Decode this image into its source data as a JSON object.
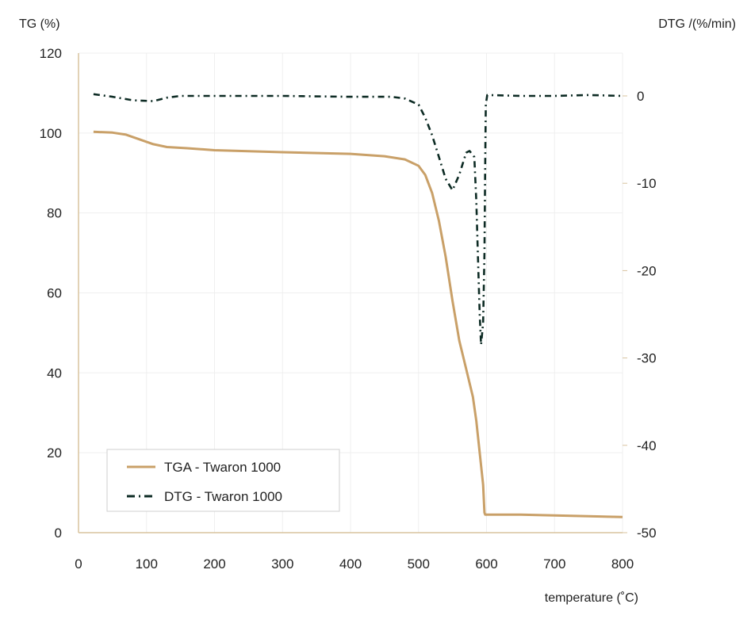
{
  "chart_data": {
    "type": "line",
    "title": "",
    "xlabel": "temperature (˚C)",
    "ylabel": "TG (%)",
    "y2label": "DTG /(%/min)",
    "xlim": [
      0,
      800
    ],
    "ylim": [
      0,
      120
    ],
    "y2lim": [
      -50,
      0
    ],
    "xticks": [
      0,
      100,
      200,
      300,
      400,
      500,
      600,
      700,
      800
    ],
    "yticks": [
      0,
      20,
      40,
      60,
      80,
      100,
      120
    ],
    "y2ticks": [
      0,
      -10,
      -20,
      -30,
      -40,
      -50
    ],
    "grid": true,
    "legend_position": "bottom-left",
    "colors": {
      "tga": "#c9a068",
      "dtg": "#0d2b24",
      "axis": "#d8c39e",
      "grid": "#efefef"
    },
    "series": [
      {
        "name": "TGA - Twaron 1000",
        "axis": "left",
        "style": "solid",
        "x": [
          22,
          50,
          70,
          90,
          110,
          130,
          160,
          200,
          300,
          400,
          450,
          480,
          500,
          510,
          520,
          530,
          540,
          550,
          560,
          570,
          580,
          585,
          590,
          595,
          597,
          598,
          650,
          700,
          750,
          800
        ],
        "y": [
          100.3,
          100.1,
          99.6,
          98.4,
          97.2,
          96.5,
          96.2,
          95.7,
          95.2,
          94.8,
          94.2,
          93.4,
          91.8,
          89.5,
          85,
          78,
          69,
          58,
          48,
          41,
          34,
          28,
          20,
          12,
          5,
          4.5,
          4.5,
          4.3,
          4.1,
          3.9
        ]
      },
      {
        "name": "DTG - Twaron 1000",
        "axis": "right",
        "style": "dashdot",
        "x": [
          22,
          50,
          80,
          110,
          130,
          150,
          200,
          300,
          400,
          460,
          480,
          500,
          510,
          520,
          530,
          540,
          550,
          560,
          570,
          575,
          582,
          585,
          588,
          590,
          592,
          595,
          597,
          598,
          599,
          601,
          650,
          700,
          750,
          800
        ],
        "y": [
          0.2,
          -0.1,
          -0.5,
          -0.6,
          -0.2,
          0,
          0,
          0,
          -0.1,
          -0.1,
          -0.3,
          -1,
          -2.5,
          -4.5,
          -7,
          -9.5,
          -10.8,
          -9,
          -6.5,
          -6.3,
          -7,
          -12,
          -20,
          -25,
          -28.5,
          -26,
          -18,
          -8,
          -1,
          0.1,
          0,
          0,
          0.1,
          0
        ]
      }
    ]
  }
}
